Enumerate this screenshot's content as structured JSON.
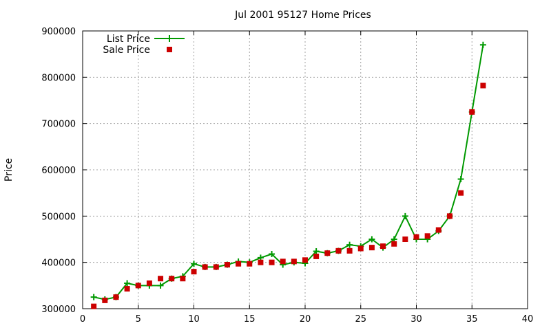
{
  "chart_data": {
    "type": "line",
    "title": "Jul 2001 95127 Home Prices",
    "xlabel": "",
    "ylabel": "Price",
    "xlim": [
      0,
      40
    ],
    "ylim": [
      300000,
      900000
    ],
    "xticks": [
      0,
      5,
      10,
      15,
      20,
      25,
      30,
      35,
      40
    ],
    "yticks": [
      300000,
      400000,
      500000,
      600000,
      700000,
      800000,
      900000
    ],
    "grid": true,
    "legend_position": "top-left",
    "series": [
      {
        "name": "List Price",
        "style": "line+plus",
        "color": "#009900",
        "x": [
          1,
          2,
          3,
          4,
          5,
          6,
          7,
          8,
          9,
          10,
          11,
          12,
          13,
          14,
          15,
          16,
          17,
          18,
          19,
          20,
          21,
          22,
          23,
          24,
          25,
          26,
          27,
          28,
          29,
          30,
          31,
          32,
          33,
          34,
          35,
          36
        ],
        "y": [
          325000,
          320000,
          325000,
          355000,
          350000,
          350000,
          350000,
          365000,
          370000,
          397000,
          390000,
          390000,
          395000,
          402000,
          400000,
          410000,
          418000,
          395000,
          400000,
          398000,
          424000,
          420000,
          425000,
          438000,
          435000,
          450000,
          432000,
          450000,
          500000,
          450000,
          450000,
          468000,
          500000,
          580000,
          725000,
          870000
        ]
      },
      {
        "name": "Sale Price",
        "style": "square",
        "color": "#cc0000",
        "x": [
          1,
          2,
          3,
          4,
          5,
          6,
          7,
          8,
          9,
          10,
          11,
          12,
          13,
          14,
          15,
          16,
          17,
          18,
          19,
          20,
          21,
          22,
          23,
          24,
          25,
          26,
          27,
          28,
          29,
          30,
          31,
          32,
          33,
          34,
          35,
          36
        ],
        "y": [
          305000,
          318000,
          325000,
          343000,
          350000,
          355000,
          365000,
          365000,
          365000,
          380000,
          390000,
          390000,
          395000,
          397000,
          397000,
          400000,
          400000,
          402000,
          402000,
          405000,
          413000,
          420000,
          425000,
          425000,
          430000,
          432000,
          435000,
          440000,
          450000,
          455000,
          457000,
          470000,
          500000,
          550000,
          725000,
          782000
        ]
      }
    ]
  }
}
